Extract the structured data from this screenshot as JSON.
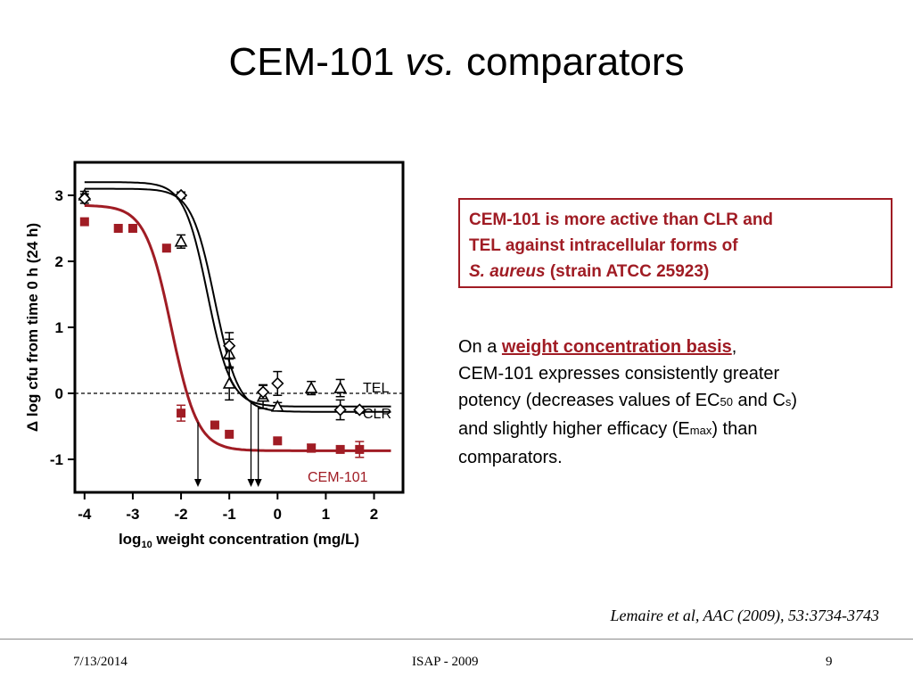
{
  "slide": {
    "title_main": "CEM-101 ",
    "title_italic": "vs.",
    "title_rest": " comparators"
  },
  "callout": {
    "line1": "CEM-101 is more active than CLR and",
    "line2": "TEL against intracellular forms of",
    "organism": "S. aureus",
    "strain": " (strain ATCC 25923)"
  },
  "paragraph": {
    "lead": "On a ",
    "link": "weight concentration basis",
    "comma": ",",
    "t1": "CEM-101 expresses consistently greater",
    "t2": "potency (decreases values of EC",
    "sub50": "50",
    "t3": " and C",
    "subs": "s",
    "t4": ")",
    "t5": "and  slightly higher efficacy (E",
    "submax": "max",
    "t6": ") than",
    "t7": "comparators."
  },
  "citation": "Lemaire et al, AAC (2009), 53:3734-3743",
  "footer": {
    "date": "7/13/2014",
    "center": "ISAP - 2009",
    "page": "9"
  },
  "colors": {
    "accent": "#a01c24",
    "text": "#000000",
    "footer_rule": "#8c8c8c"
  },
  "chart_data": {
    "type": "scatter",
    "title": "",
    "xlabel_pre": "log",
    "xlabel_sub": "10",
    "xlabel_post": " weight concentration (mg/L)",
    "ylabel_symbol": "Δ",
    "ylabel": "log cfu from time 0 h (24 h)",
    "xlim": [
      -4.2,
      2.6
    ],
    "ylim": [
      -1.5,
      3.5
    ],
    "xticks": [
      -4,
      -3,
      -2,
      -1,
      0,
      1,
      2
    ],
    "xtick_labels": [
      "-4",
      "-3",
      "-2",
      "-1",
      "0",
      "1",
      "2"
    ],
    "yticks": [
      -1,
      0,
      1,
      2,
      3
    ],
    "ytick_labels": [
      "-1",
      "0",
      "1",
      "2",
      "3"
    ],
    "grid": false,
    "reference_line_y": 0,
    "series": [
      {
        "name": "TEL",
        "color": "#000000",
        "marker": "triangle",
        "x": [
          -4,
          -2,
          -1,
          -1,
          -0.3,
          0,
          0.7,
          1.3
        ],
        "y": [
          3.0,
          2.3,
          0.6,
          0.15,
          -0.05,
          -0.2,
          0.08,
          0.08
        ],
        "err": [
          0.06,
          0.1,
          0.22,
          0.25,
          0.18,
          0.06,
          0.1,
          0.13
        ],
        "fit": {
          "top": 3.2,
          "bottom": -0.2,
          "ec50": -1.45,
          "hill": 1.8
        },
        "ec50_x": -0.55
      },
      {
        "name": "CLR",
        "color": "#000000",
        "marker": "diamond",
        "x": [
          -4,
          -2,
          -1,
          -0.3,
          0,
          1.3,
          1.7
        ],
        "y": [
          2.95,
          3.0,
          0.72,
          0.02,
          0.15,
          -0.25,
          -0.25
        ],
        "err": [
          0.07,
          0.05,
          0.2,
          0.1,
          0.18,
          0.15,
          0.05
        ],
        "fit": {
          "top": 3.1,
          "bottom": -0.28,
          "ec50": -1.3,
          "hill": 1.8
        },
        "ec50_x": -0.4
      },
      {
        "name": "CEM-101",
        "color": "#a01c24",
        "marker": "square",
        "x": [
          -4,
          -3.3,
          -3,
          -2.3,
          -2,
          -1.3,
          -1,
          0,
          0.7,
          1.3,
          1.7
        ],
        "y": [
          2.6,
          2.5,
          2.5,
          2.2,
          -0.3,
          -0.48,
          -0.62,
          -0.72,
          -0.83,
          -0.85,
          -0.85
        ],
        "err": [
          0,
          0,
          0,
          0,
          0.12,
          0,
          0,
          0,
          0.06,
          0,
          0.12
        ],
        "fit": {
          "top": 2.85,
          "bottom": -0.87,
          "ec50": -2.2,
          "hill": 1.6
        },
        "ec50_x": -1.65
      }
    ]
  }
}
